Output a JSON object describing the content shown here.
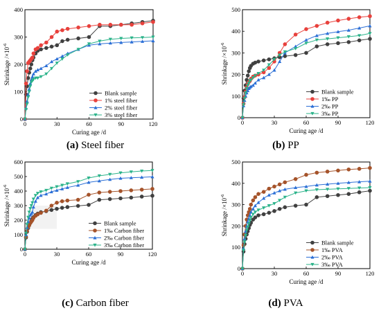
{
  "chart_data": [
    {
      "type": "line",
      "caption": {
        "label": "(a)",
        "text": "Steel fiber"
      },
      "xlabel": "Curing age /d",
      "ylabel": "Shrinkage /×10",
      "ylabel_exp": "-6",
      "xlim": [
        0,
        120
      ],
      "ylim": [
        0,
        400
      ],
      "xticks": [
        0,
        30,
        60,
        90,
        120
      ],
      "yticks": [
        0,
        100,
        200,
        300,
        400
      ],
      "grid": false,
      "legend_position": "bottom-right",
      "series": [
        {
          "name": "Blank sample",
          "color": "#404040",
          "marker": "circle",
          "x": [
            0,
            1,
            2,
            3,
            4,
            5,
            6,
            7,
            8,
            10,
            12,
            15,
            20,
            25,
            30,
            35,
            40,
            50,
            60,
            70,
            80,
            90,
            100,
            110,
            120
          ],
          "y": [
            0,
            90,
            120,
            150,
            170,
            185,
            200,
            215,
            225,
            240,
            250,
            255,
            260,
            265,
            270,
            285,
            290,
            295,
            300,
            340,
            340,
            345,
            350,
            355,
            360
          ]
        },
        {
          "name": "1% steel fiber",
          "color": "#e8413c",
          "marker": "circle",
          "x": [
            0,
            1,
            2,
            3,
            4,
            5,
            6,
            7,
            8,
            10,
            12,
            15,
            20,
            25,
            30,
            35,
            40,
            50,
            60,
            70,
            80,
            90,
            100,
            110,
            120
          ],
          "y": [
            0,
            130,
            175,
            205,
            210,
            215,
            220,
            225,
            240,
            255,
            260,
            270,
            280,
            300,
            320,
            325,
            330,
            335,
            340,
            345,
            345,
            345,
            345,
            350,
            355
          ]
        },
        {
          "name": "2% steel fiber",
          "color": "#2b6fd6",
          "marker": "triangle",
          "x": [
            0,
            1,
            2,
            3,
            4,
            5,
            6,
            7,
            8,
            10,
            12,
            15,
            20,
            25,
            30,
            35,
            40,
            50,
            60,
            70,
            80,
            90,
            100,
            110,
            120
          ],
          "y": [
            0,
            40,
            65,
            90,
            110,
            130,
            145,
            155,
            165,
            175,
            180,
            185,
            195,
            210,
            220,
            230,
            240,
            255,
            270,
            275,
            278,
            280,
            282,
            284,
            286
          ]
        },
        {
          "name": "3% steel fiber",
          "color": "#2bb38a",
          "marker": "triangle-down",
          "x": [
            0,
            1,
            2,
            3,
            4,
            5,
            6,
            7,
            8,
            10,
            12,
            15,
            20,
            25,
            30,
            35,
            40,
            50,
            60,
            70,
            80,
            90,
            100,
            110,
            120
          ],
          "y": [
            0,
            35,
            55,
            80,
            100,
            120,
            135,
            140,
            145,
            150,
            150,
            155,
            165,
            185,
            205,
            220,
            235,
            255,
            275,
            285,
            292,
            295,
            297,
            298,
            300
          ]
        }
      ]
    },
    {
      "type": "line",
      "caption": {
        "label": "(b)",
        "text": "PP"
      },
      "xlabel": "Curing age /d",
      "ylabel": "Shrinkage /×10",
      "ylabel_exp": "-6",
      "xlim": [
        0,
        120
      ],
      "ylim": [
        0,
        500
      ],
      "xticks": [
        0,
        30,
        60,
        90,
        120
      ],
      "yticks": [
        0,
        100,
        200,
        300,
        400,
        500
      ],
      "grid": false,
      "legend_position": "bottom-right",
      "series": [
        {
          "name": "Blank sample",
          "color": "#404040",
          "marker": "circle",
          "x": [
            0,
            1,
            2,
            3,
            4,
            5,
            6,
            7,
            8,
            10,
            12,
            15,
            20,
            25,
            30,
            35,
            40,
            50,
            60,
            70,
            80,
            90,
            100,
            110,
            120
          ],
          "y": [
            0,
            90,
            125,
            150,
            175,
            195,
            215,
            230,
            240,
            250,
            255,
            260,
            265,
            270,
            275,
            280,
            285,
            290,
            300,
            330,
            340,
            345,
            350,
            358,
            365
          ]
        },
        {
          "name": "1‰ PP",
          "color": "#e8413c",
          "marker": "circle",
          "x": [
            0,
            1,
            2,
            3,
            4,
            5,
            6,
            7,
            8,
            10,
            12,
            15,
            20,
            25,
            30,
            35,
            40,
            50,
            60,
            70,
            80,
            90,
            100,
            110,
            120
          ],
          "y": [
            0,
            65,
            95,
            120,
            140,
            155,
            165,
            170,
            180,
            190,
            195,
            200,
            210,
            230,
            260,
            300,
            340,
            385,
            410,
            425,
            440,
            450,
            458,
            465,
            470
          ]
        },
        {
          "name": "2‰ PP",
          "color": "#2b6fd6",
          "marker": "triangle",
          "x": [
            0,
            1,
            2,
            3,
            4,
            5,
            6,
            7,
            8,
            10,
            12,
            15,
            20,
            25,
            30,
            35,
            40,
            50,
            60,
            70,
            80,
            90,
            100,
            110,
            120
          ],
          "y": [
            0,
            55,
            80,
            100,
            115,
            125,
            135,
            140,
            145,
            150,
            160,
            175,
            185,
            200,
            220,
            260,
            300,
            330,
            360,
            380,
            390,
            398,
            405,
            415,
            425
          ]
        },
        {
          "name": "3‰ PP",
          "color": "#2bb38a",
          "marker": "triangle-down",
          "x": [
            0,
            1,
            2,
            3,
            4,
            5,
            6,
            7,
            8,
            10,
            12,
            15,
            20,
            25,
            30,
            35,
            40,
            50,
            60,
            70,
            80,
            90,
            100,
            110,
            120
          ],
          "y": [
            0,
            60,
            90,
            115,
            135,
            150,
            160,
            170,
            175,
            185,
            195,
            205,
            220,
            245,
            270,
            290,
            305,
            320,
            345,
            360,
            365,
            370,
            375,
            380,
            390
          ]
        }
      ]
    },
    {
      "type": "line",
      "caption": {
        "label": "(c)",
        "text": "Carbon fiber"
      },
      "xlabel": "Curing age /d",
      "ylabel": "Shrinkage /×10",
      "ylabel_exp": "-6",
      "xlim": [
        0,
        120
      ],
      "ylim": [
        0,
        600
      ],
      "xticks": [
        0,
        30,
        60,
        90,
        120
      ],
      "yticks": [
        0,
        100,
        200,
        300,
        400,
        500,
        600
      ],
      "grid": false,
      "legend_position": "bottom-right",
      "series": [
        {
          "name": "Blank sample",
          "color": "#404040",
          "marker": "circle",
          "x": [
            0,
            1,
            2,
            3,
            4,
            5,
            6,
            7,
            8,
            10,
            12,
            15,
            20,
            25,
            30,
            35,
            40,
            50,
            60,
            70,
            80,
            90,
            100,
            110,
            120
          ],
          "y": [
            0,
            80,
            120,
            145,
            165,
            180,
            195,
            210,
            220,
            235,
            245,
            255,
            262,
            270,
            278,
            285,
            290,
            298,
            305,
            340,
            345,
            350,
            355,
            362,
            368
          ]
        },
        {
          "name": "1‰ Carbon fiber",
          "color": "#a5532a",
          "marker": "circle",
          "x": [
            0,
            1,
            2,
            3,
            4,
            5,
            6,
            7,
            8,
            10,
            12,
            15,
            20,
            25,
            30,
            35,
            40,
            50,
            60,
            70,
            80,
            90,
            100,
            110,
            120
          ],
          "y": [
            0,
            85,
            125,
            150,
            165,
            180,
            190,
            200,
            215,
            230,
            240,
            250,
            265,
            300,
            320,
            330,
            335,
            340,
            375,
            390,
            395,
            400,
            405,
            410,
            415
          ]
        },
        {
          "name": "2‰ Carbon fiber",
          "color": "#2b6fd6",
          "marker": "triangle",
          "x": [
            0,
            1,
            2,
            3,
            4,
            5,
            6,
            7,
            8,
            10,
            12,
            15,
            20,
            25,
            30,
            35,
            40,
            50,
            60,
            70,
            80,
            90,
            100,
            110,
            120
          ],
          "y": [
            0,
            100,
            150,
            190,
            215,
            235,
            245,
            255,
            290,
            330,
            355,
            370,
            380,
            395,
            405,
            415,
            425,
            440,
            460,
            470,
            480,
            488,
            492,
            495,
            498
          ]
        },
        {
          "name": "3‰ Carbon fiber",
          "color": "#2bb38a",
          "marker": "triangle-down",
          "x": [
            0,
            1,
            2,
            3,
            4,
            5,
            6,
            7,
            8,
            10,
            12,
            15,
            20,
            25,
            30,
            35,
            40,
            50,
            60,
            70,
            80,
            90,
            100,
            110,
            120
          ],
          "y": [
            0,
            110,
            170,
            220,
            255,
            280,
            300,
            320,
            345,
            370,
            385,
            395,
            405,
            420,
            430,
            440,
            450,
            465,
            490,
            505,
            515,
            525,
            532,
            538,
            542
          ]
        }
      ]
    },
    {
      "type": "line",
      "caption": {
        "label": "(d)",
        "text": "PVA"
      },
      "xlabel": "Curing age /d",
      "ylabel": "Shrinkage /×10",
      "ylabel_exp": "-6",
      "xlim": [
        0,
        120
      ],
      "ylim": [
        0,
        500
      ],
      "xticks": [
        0,
        30,
        60,
        90,
        120
      ],
      "yticks": [
        0,
        100,
        200,
        300,
        400,
        500
      ],
      "grid": false,
      "legend_position": "bottom-right",
      "series": [
        {
          "name": "Blank sample",
          "color": "#404040",
          "marker": "circle",
          "x": [
            0,
            1,
            2,
            3,
            4,
            5,
            6,
            7,
            8,
            10,
            12,
            15,
            20,
            25,
            30,
            35,
            40,
            50,
            60,
            70,
            80,
            90,
            100,
            110,
            120
          ],
          "y": [
            0,
            80,
            115,
            140,
            160,
            175,
            190,
            205,
            215,
            230,
            240,
            250,
            255,
            262,
            270,
            280,
            288,
            295,
            300,
            335,
            340,
            345,
            350,
            358,
            365
          ]
        },
        {
          "name": "1‰ PVA",
          "color": "#a5532a",
          "marker": "circle",
          "x": [
            0,
            1,
            2,
            3,
            4,
            5,
            6,
            7,
            8,
            10,
            12,
            15,
            20,
            25,
            30,
            35,
            40,
            50,
            60,
            70,
            80,
            90,
            100,
            110,
            120
          ],
          "y": [
            0,
            110,
            160,
            200,
            230,
            250,
            265,
            280,
            300,
            320,
            335,
            350,
            360,
            375,
            385,
            395,
            405,
            420,
            440,
            450,
            455,
            460,
            465,
            468,
            472
          ]
        },
        {
          "name": "2‰ PVA",
          "color": "#2b6fd6",
          "marker": "triangle",
          "x": [
            0,
            1,
            2,
            3,
            4,
            5,
            6,
            7,
            8,
            10,
            12,
            15,
            20,
            25,
            30,
            35,
            40,
            50,
            60,
            70,
            80,
            90,
            100,
            110,
            120
          ],
          "y": [
            0,
            95,
            140,
            175,
            200,
            220,
            235,
            250,
            265,
            280,
            295,
            310,
            330,
            345,
            355,
            365,
            372,
            380,
            385,
            392,
            396,
            400,
            404,
            407,
            410
          ]
        },
        {
          "name": "3‰ PVA",
          "color": "#2bb38a",
          "marker": "triangle-down",
          "x": [
            0,
            1,
            2,
            3,
            4,
            5,
            6,
            7,
            8,
            10,
            12,
            15,
            20,
            25,
            30,
            35,
            40,
            50,
            60,
            70,
            80,
            90,
            100,
            110,
            120
          ],
          "y": [
            0,
            85,
            125,
            155,
            180,
            195,
            210,
            225,
            240,
            255,
            265,
            275,
            285,
            295,
            305,
            320,
            335,
            355,
            365,
            370,
            372,
            374,
            376,
            378,
            380
          ]
        }
      ]
    }
  ]
}
